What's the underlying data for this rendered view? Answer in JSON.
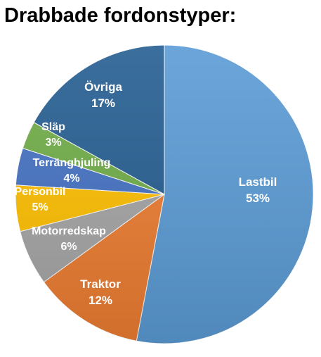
{
  "chart_data": {
    "type": "pie",
    "title": "Drabbade fordonstyper:",
    "slices": [
      {
        "label": "Lastbil",
        "value": 53,
        "display": "53%",
        "color": "#5b9bd5"
      },
      {
        "label": "Traktor",
        "value": 12,
        "display": "12%",
        "color": "#ed7d31"
      },
      {
        "label": "Motorredskap",
        "value": 6,
        "display": "6%",
        "color": "#a5a5a5"
      },
      {
        "label": "Personbil",
        "value": 5,
        "display": "5%",
        "color": "#ffc000"
      },
      {
        "label": "Terränghjuling",
        "value": 4,
        "display": "4%",
        "color": "#4472c4"
      },
      {
        "label": "Släp",
        "value": 3,
        "display": "3%",
        "color": "#70ad47"
      },
      {
        "label": "Övriga",
        "value": 17,
        "display": "17%",
        "color": "#255e91"
      }
    ],
    "legend": "none",
    "data_labels": "inside"
  }
}
